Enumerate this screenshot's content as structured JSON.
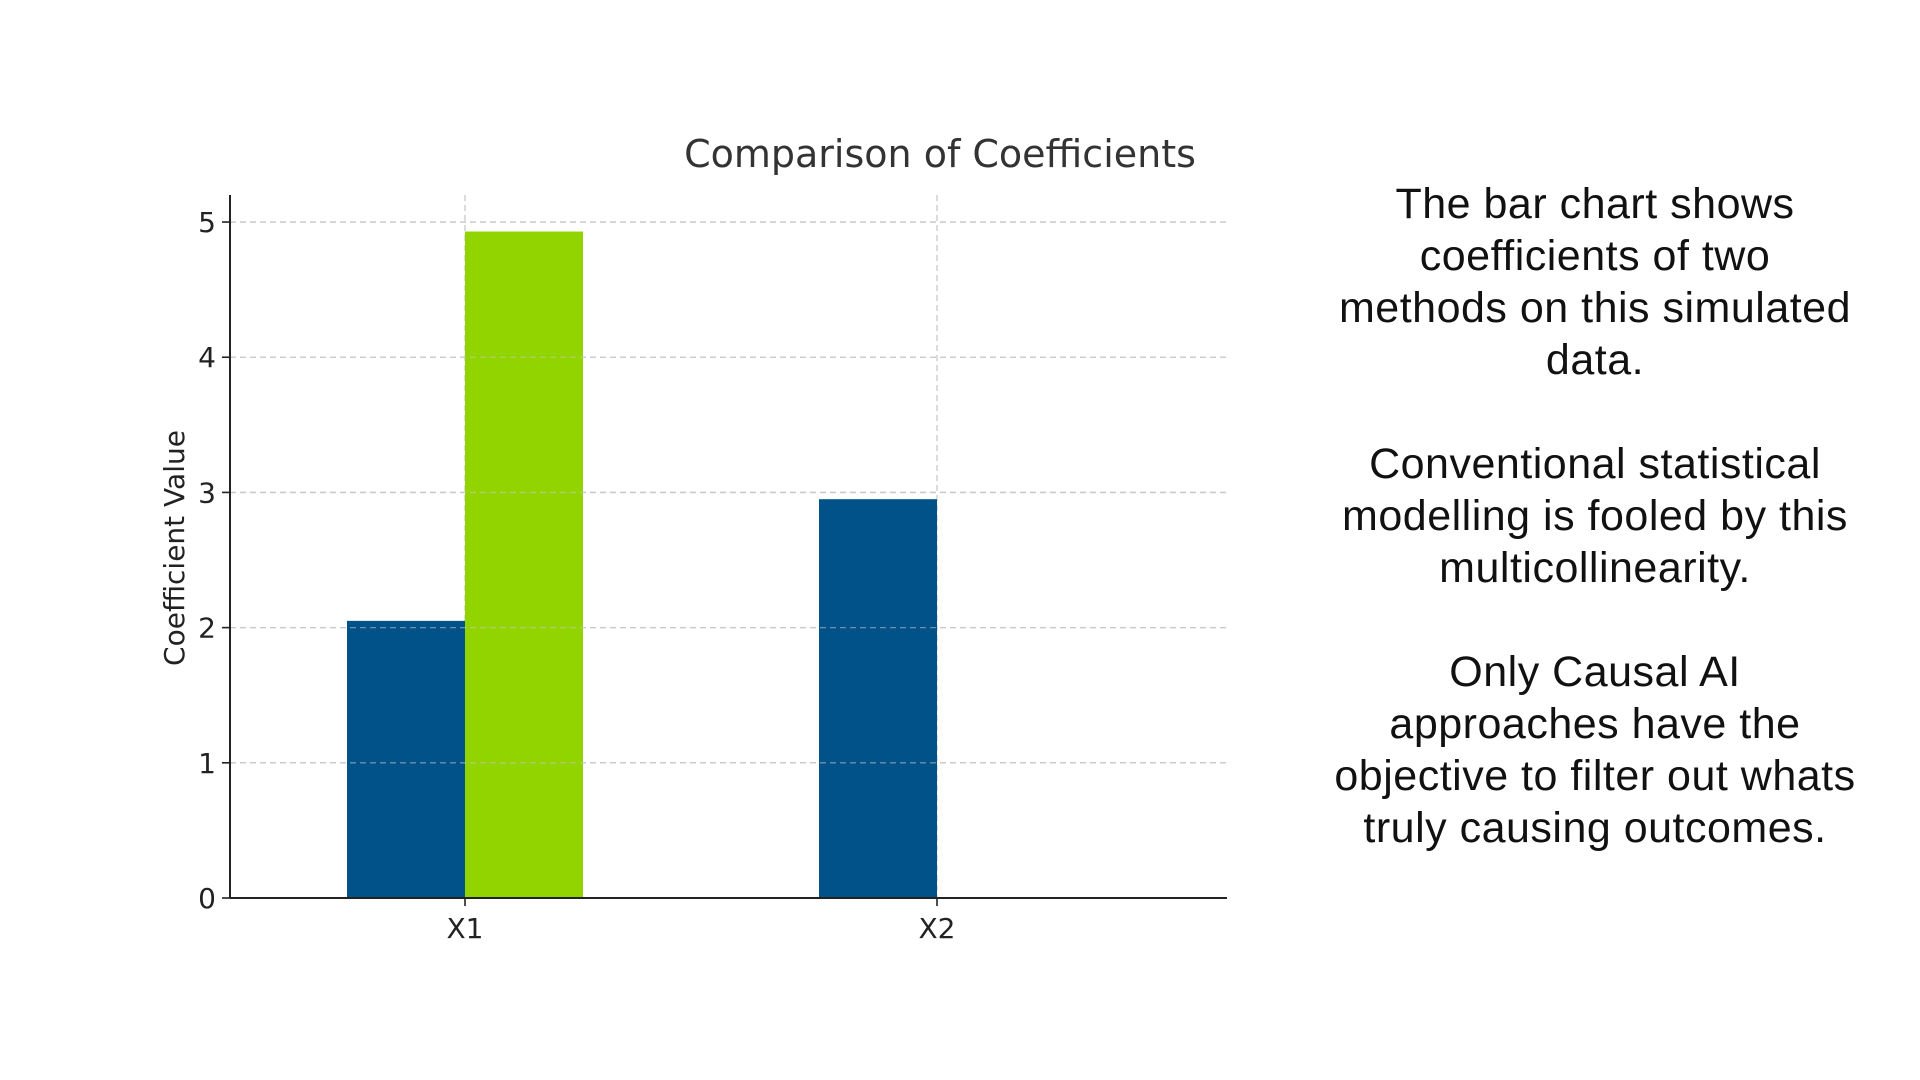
{
  "chart_data": {
    "type": "bar",
    "title": "Comparison of Coefficients",
    "xlabel": "",
    "ylabel": "Coefficient Value",
    "categories": [
      "X1",
      "X2"
    ],
    "series": [
      {
        "color": "#005288",
        "values": [
          2.05,
          2.95
        ]
      },
      {
        "color": "#92d400",
        "values": [
          4.93,
          0
        ]
      }
    ],
    "ylim": [
      0,
      5.2
    ],
    "yticks": [
      0,
      1,
      2,
      3,
      4,
      5
    ],
    "grid": true,
    "legend": "none"
  },
  "side_text": {
    "paragraphs": [
      "The bar chart shows coefficients of two methods on this simulated data.",
      "Conventional statistical modelling is fooled by this multicollinearity.",
      "Only Causal AI approaches have the objective to filter out whats truly causing outcomes."
    ]
  }
}
